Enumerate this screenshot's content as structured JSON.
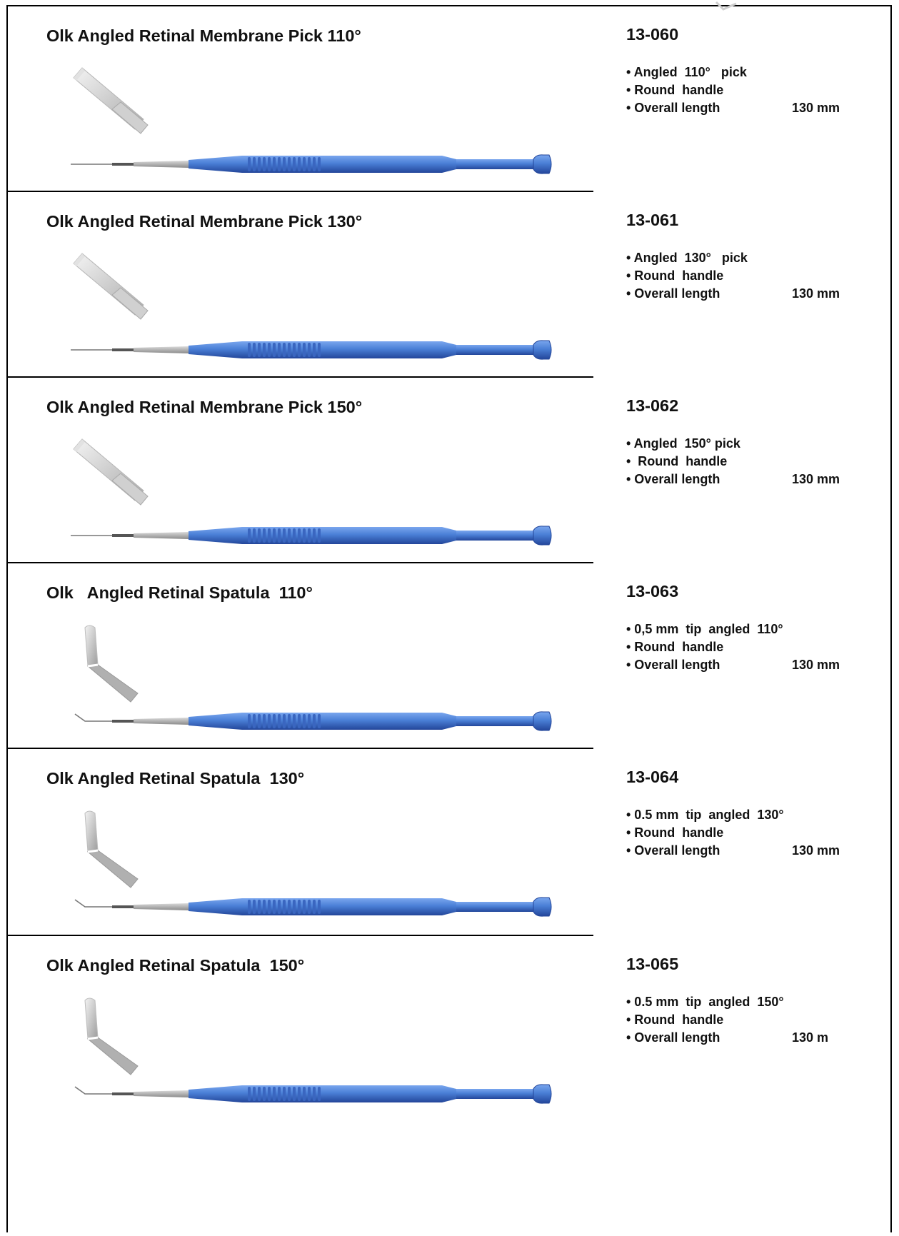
{
  "products": [
    {
      "name": "Olk Angled Retinal Membrane Pick 110°",
      "code": "13-060",
      "specs": [
        {
          "label": "• Angled  110°   pick",
          "value": ""
        },
        {
          "label": "• Round  handle",
          "value": ""
        },
        {
          "label": "• Overall length",
          "value": "130 mm"
        }
      ],
      "tip_icon": "pick-tip-icon"
    },
    {
      "name": "Olk Angled Retinal Membrane Pick 130°",
      "code": "13-061",
      "specs": [
        {
          "label": "• Angled  130°   pick",
          "value": ""
        },
        {
          "label": "• Round  handle",
          "value": ""
        },
        {
          "label": "• Overall length",
          "value": "130 mm"
        }
      ],
      "tip_icon": "pick-tip-icon"
    },
    {
      "name": "Olk Angled Retinal Membrane Pick 150°",
      "code": "13-062",
      "specs": [
        {
          "label": "• Angled  150° pick",
          "value": ""
        },
        {
          "label": "•  Round  handle",
          "value": ""
        },
        {
          "label": "• Overall length",
          "value": "130 mm"
        }
      ],
      "tip_icon": "pick-tip-icon"
    },
    {
      "name": "Olk   Angled Retinal Spatula  110°",
      "code": "13-063",
      "specs": [
        {
          "label": "• 0,5 mm  tip  angled  110°",
          "value": ""
        },
        {
          "label": "• Round  handle",
          "value": ""
        },
        {
          "label": "• Overall length",
          "value": "130 mm"
        }
      ],
      "tip_icon": "spatula-tip-icon"
    },
    {
      "name": "Olk Angled Retinal Spatula  130°",
      "code": "13-064",
      "specs": [
        {
          "label": "• 0.5 mm  tip  angled  130°",
          "value": ""
        },
        {
          "label": "• Round  handle",
          "value": ""
        },
        {
          "label": "• Overall length",
          "value": "130 mm"
        }
      ],
      "tip_icon": "spatula-tip-icon"
    },
    {
      "name": "Olk Angled Retinal Spatula  150°",
      "code": "13-065",
      "specs": [
        {
          "label": "• 0.5 mm  tip  angled  150°",
          "value": ""
        },
        {
          "label": "• Round  handle",
          "value": ""
        },
        {
          "label": "• Overall length",
          "value": "130 m"
        }
      ],
      "tip_icon": "spatula-tip-icon"
    }
  ],
  "colors": {
    "handle_blue": "#4a7fd6",
    "handle_dark": "#23469a",
    "steel": "#b8b8b8",
    "border": "#000000"
  }
}
